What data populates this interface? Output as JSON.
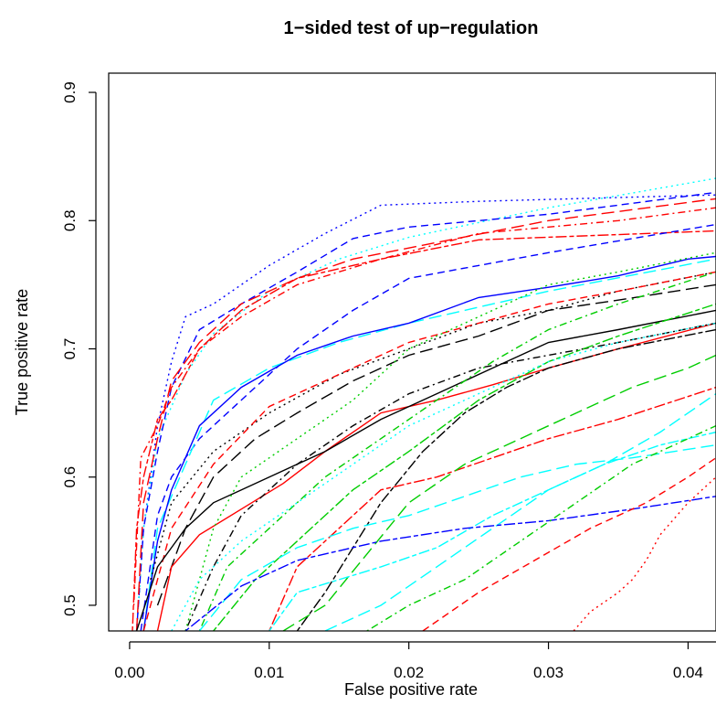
{
  "chart_data": {
    "type": "line",
    "title": "1−sided test of up−regulation",
    "xlabel": "False positive rate",
    "ylabel": "True positive rate",
    "xlim": [
      -0.0015,
      0.042
    ],
    "ylim": [
      0.48,
      0.915
    ],
    "x_ticks": [
      0.0,
      0.01,
      0.02,
      0.03,
      0.04
    ],
    "x_tick_labels": [
      "0.00",
      "0.01",
      "0.02",
      "0.03",
      "0.04"
    ],
    "y_ticks": [
      0.5,
      0.6,
      0.7,
      0.8,
      0.9
    ],
    "y_tick_labels": [
      "0.5",
      "0.6",
      "0.7",
      "0.8",
      "0.9"
    ],
    "grid": false,
    "legend": "none",
    "series": [
      {
        "color": "#0000ff",
        "dash": "dotted",
        "x": [
          0.0005,
          0.001,
          0.002,
          0.003,
          0.004,
          0.006,
          0.008,
          0.01,
          0.014,
          0.018,
          0.025,
          0.035,
          0.042
        ],
        "y": [
          0.48,
          0.56,
          0.64,
          0.69,
          0.725,
          0.735,
          0.75,
          0.765,
          0.79,
          0.812,
          0.815,
          0.818,
          0.82
        ]
      },
      {
        "color": "#00ffff",
        "dash": "dotted",
        "x": [
          0.0005,
          0.001,
          0.002,
          0.004,
          0.006,
          0.01,
          0.015,
          0.02,
          0.03,
          0.042
        ],
        "y": [
          0.48,
          0.56,
          0.63,
          0.68,
          0.712,
          0.745,
          0.77,
          0.787,
          0.81,
          0.833
        ]
      },
      {
        "color": "#0000ff",
        "dash": "dashed",
        "x": [
          0.0005,
          0.001,
          0.002,
          0.003,
          0.005,
          0.008,
          0.012,
          0.016,
          0.02,
          0.03,
          0.042
        ],
        "y": [
          0.48,
          0.56,
          0.62,
          0.67,
          0.715,
          0.735,
          0.76,
          0.786,
          0.795,
          0.805,
          0.822
        ]
      },
      {
        "color": "#ff0000",
        "dash": "longdash",
        "x": [
          0.0005,
          0.001,
          0.002,
          0.003,
          0.005,
          0.008,
          0.012,
          0.016,
          0.022,
          0.03,
          0.042
        ],
        "y": [
          0.48,
          0.58,
          0.63,
          0.675,
          0.705,
          0.735,
          0.755,
          0.77,
          0.783,
          0.8,
          0.817
        ]
      },
      {
        "color": "#ff0000",
        "dash": "dotdash",
        "x": [
          0.0003,
          0.0008,
          0.002,
          0.003,
          0.005,
          0.008,
          0.012,
          0.018,
          0.025,
          0.035,
          0.042
        ],
        "y": [
          0.5,
          0.615,
          0.64,
          0.67,
          0.7,
          0.725,
          0.75,
          0.77,
          0.79,
          0.8,
          0.81
        ]
      },
      {
        "color": "#ff0000",
        "dash": "twodash",
        "x": [
          0.0002,
          0.0005,
          0.001,
          0.002,
          0.003,
          0.005,
          0.008,
          0.012,
          0.018,
          0.025,
          0.042
        ],
        "y": [
          0.48,
          0.56,
          0.6,
          0.645,
          0.66,
          0.7,
          0.73,
          0.755,
          0.77,
          0.785,
          0.792
        ]
      },
      {
        "color": "#0000ff",
        "dash": "dashed",
        "x": [
          0.0008,
          0.002,
          0.003,
          0.005,
          0.008,
          0.012,
          0.016,
          0.02,
          0.03,
          0.042
        ],
        "y": [
          0.48,
          0.57,
          0.6,
          0.63,
          0.66,
          0.7,
          0.73,
          0.755,
          0.775,
          0.797
        ]
      },
      {
        "color": "#00ffff",
        "dash": "longdash",
        "x": [
          0.001,
          0.002,
          0.004,
          0.006,
          0.01,
          0.015,
          0.02,
          0.03,
          0.042
        ],
        "y": [
          0.48,
          0.56,
          0.61,
          0.66,
          0.685,
          0.705,
          0.72,
          0.745,
          0.77
        ]
      },
      {
        "color": "#0000ff",
        "dash": "solid",
        "x": [
          0.001,
          0.002,
          0.003,
          0.005,
          0.008,
          0.012,
          0.016,
          0.02,
          0.025,
          0.03,
          0.035,
          0.04,
          0.042
        ],
        "y": [
          0.48,
          0.55,
          0.59,
          0.64,
          0.67,
          0.695,
          0.71,
          0.72,
          0.74,
          0.748,
          0.757,
          0.77,
          0.772
        ]
      },
      {
        "color": "#000000",
        "dash": "dotted",
        "x": [
          0.0015,
          0.003,
          0.006,
          0.01,
          0.015,
          0.02,
          0.025,
          0.03,
          0.035,
          0.042
        ],
        "y": [
          0.52,
          0.58,
          0.62,
          0.65,
          0.68,
          0.7,
          0.72,
          0.73,
          0.745,
          0.76
        ]
      },
      {
        "color": "#000000",
        "dash": "longdash",
        "x": [
          0.002,
          0.004,
          0.006,
          0.009,
          0.012,
          0.016,
          0.02,
          0.025,
          0.03,
          0.035,
          0.042
        ],
        "y": [
          0.5,
          0.56,
          0.6,
          0.63,
          0.65,
          0.675,
          0.695,
          0.71,
          0.73,
          0.738,
          0.75
        ]
      },
      {
        "color": "#ff0000",
        "dash": "dashed",
        "x": [
          0.001,
          0.003,
          0.006,
          0.01,
          0.015,
          0.02,
          0.025,
          0.03,
          0.035,
          0.042
        ],
        "y": [
          0.48,
          0.56,
          0.61,
          0.655,
          0.68,
          0.705,
          0.72,
          0.735,
          0.745,
          0.76
        ]
      },
      {
        "color": "#ff0000",
        "dash": "solid",
        "x": [
          0.002,
          0.003,
          0.005,
          0.008,
          0.011,
          0.014,
          0.018,
          0.022,
          0.026,
          0.03,
          0.035,
          0.042
        ],
        "y": [
          0.48,
          0.53,
          0.555,
          0.575,
          0.595,
          0.62,
          0.65,
          0.66,
          0.672,
          0.685,
          0.7,
          0.72
        ]
      },
      {
        "color": "#000000",
        "dash": "solid",
        "x": [
          0.0005,
          0.002,
          0.004,
          0.006,
          0.01,
          0.014,
          0.018,
          0.022,
          0.026,
          0.03,
          0.035,
          0.042
        ],
        "y": [
          0.48,
          0.53,
          0.56,
          0.58,
          0.6,
          0.62,
          0.645,
          0.665,
          0.685,
          0.705,
          0.715,
          0.73
        ]
      },
      {
        "color": "#000000",
        "dash": "dotdash",
        "x": [
          0.004,
          0.006,
          0.008,
          0.012,
          0.016,
          0.02,
          0.025,
          0.03,
          0.035,
          0.042
        ],
        "y": [
          0.48,
          0.53,
          0.57,
          0.61,
          0.64,
          0.665,
          0.685,
          0.695,
          0.705,
          0.72
        ]
      },
      {
        "color": "#00cd00",
        "dash": "dotted",
        "x": [
          0.004,
          0.006,
          0.008,
          0.012,
          0.016,
          0.02,
          0.025,
          0.03,
          0.035,
          0.042
        ],
        "y": [
          0.48,
          0.56,
          0.6,
          0.63,
          0.66,
          0.7,
          0.725,
          0.75,
          0.76,
          0.775
        ]
      },
      {
        "color": "#00cd00",
        "dash": "dotdash",
        "x": [
          0.005,
          0.007,
          0.01,
          0.014,
          0.018,
          0.022,
          0.026,
          0.03,
          0.035,
          0.042
        ],
        "y": [
          0.48,
          0.53,
          0.56,
          0.6,
          0.63,
          0.66,
          0.69,
          0.715,
          0.735,
          0.76
        ]
      },
      {
        "color": "#00cd00",
        "dash": "twodash",
        "x": [
          0.006,
          0.009,
          0.012,
          0.016,
          0.02,
          0.025,
          0.03,
          0.035,
          0.042
        ],
        "y": [
          0.48,
          0.52,
          0.55,
          0.59,
          0.62,
          0.66,
          0.69,
          0.71,
          0.735
        ]
      },
      {
        "color": "#ff0000",
        "dash": "twodash",
        "x": [
          0.01,
          0.012,
          0.015,
          0.018,
          0.022,
          0.026,
          0.03,
          0.035,
          0.042
        ],
        "y": [
          0.48,
          0.53,
          0.56,
          0.59,
          0.6,
          0.615,
          0.63,
          0.645,
          0.67
        ]
      },
      {
        "color": "#00ffff",
        "dash": "dotted",
        "x": [
          0.003,
          0.005,
          0.008,
          0.012,
          0.016,
          0.02,
          0.025,
          0.03,
          0.035,
          0.042
        ],
        "y": [
          0.48,
          0.52,
          0.55,
          0.58,
          0.61,
          0.64,
          0.665,
          0.69,
          0.705,
          0.72
        ]
      },
      {
        "color": "#000000",
        "dash": "twodash",
        "x": [
          0.012,
          0.014,
          0.016,
          0.018,
          0.021,
          0.024,
          0.027,
          0.03,
          0.035,
          0.042
        ],
        "y": [
          0.48,
          0.51,
          0.545,
          0.58,
          0.62,
          0.65,
          0.67,
          0.685,
          0.7,
          0.715
        ]
      },
      {
        "color": "#00cd00",
        "dash": "longdash",
        "x": [
          0.011,
          0.014,
          0.017,
          0.02,
          0.024,
          0.028,
          0.032,
          0.036,
          0.04,
          0.042
        ],
        "y": [
          0.48,
          0.5,
          0.54,
          0.58,
          0.61,
          0.63,
          0.65,
          0.67,
          0.685,
          0.695
        ]
      },
      {
        "color": "#00ffff",
        "dash": "longdash",
        "x": [
          0.005,
          0.008,
          0.012,
          0.016,
          0.02,
          0.024,
          0.028,
          0.032,
          0.036,
          0.042
        ],
        "y": [
          0.48,
          0.52,
          0.545,
          0.56,
          0.57,
          0.585,
          0.6,
          0.61,
          0.615,
          0.625
        ]
      },
      {
        "color": "#00ffff",
        "dash": "twodash",
        "x": [
          0.01,
          0.012,
          0.015,
          0.018,
          0.022,
          0.026,
          0.03,
          0.034,
          0.038,
          0.042
        ],
        "y": [
          0.48,
          0.51,
          0.52,
          0.53,
          0.545,
          0.57,
          0.59,
          0.61,
          0.625,
          0.635
        ]
      },
      {
        "color": "#00ffff",
        "dash": "longdash",
        "x": [
          0.014,
          0.018,
          0.022,
          0.026,
          0.03,
          0.034,
          0.038,
          0.042
        ],
        "y": [
          0.48,
          0.5,
          0.53,
          0.56,
          0.59,
          0.61,
          0.635,
          0.665
        ]
      },
      {
        "color": "#0000ff",
        "dash": "twodash",
        "x": [
          0.004,
          0.008,
          0.012,
          0.018,
          0.024,
          0.03,
          0.036,
          0.042
        ],
        "y": [
          0.48,
          0.515,
          0.535,
          0.55,
          0.56,
          0.566,
          0.575,
          0.585
        ]
      },
      {
        "color": "#00cd00",
        "dash": "dotdash",
        "x": [
          0.017,
          0.02,
          0.024,
          0.028,
          0.032,
          0.036,
          0.04,
          0.042
        ],
        "y": [
          0.48,
          0.5,
          0.52,
          0.55,
          0.58,
          0.61,
          0.63,
          0.64
        ]
      },
      {
        "color": "#ff0000",
        "dash": "dashed",
        "x": [
          0.021,
          0.025,
          0.029,
          0.033,
          0.037,
          0.04,
          0.042
        ],
        "y": [
          0.48,
          0.51,
          0.535,
          0.56,
          0.58,
          0.6,
          0.615
        ]
      },
      {
        "color": "#ff0000",
        "dash": "dotted",
        "x": [
          0.0318,
          0.033,
          0.035,
          0.036,
          0.037,
          0.038,
          0.04,
          0.042
        ],
        "y": [
          0.48,
          0.495,
          0.51,
          0.52,
          0.535,
          0.555,
          0.58,
          0.6
        ]
      }
    ]
  }
}
